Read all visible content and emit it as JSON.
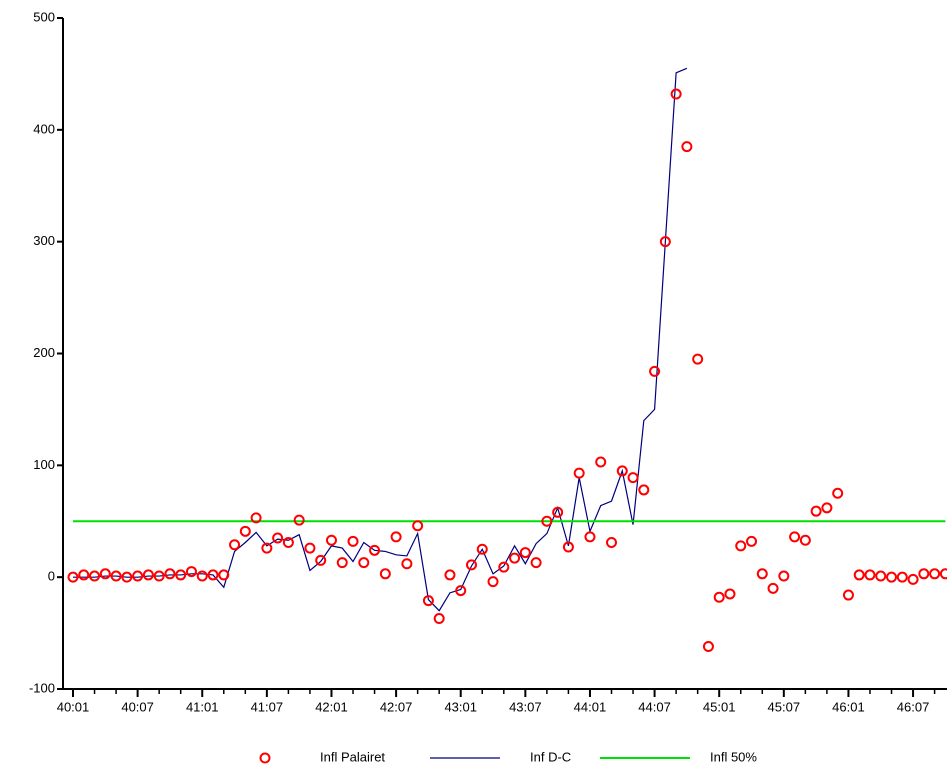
{
  "chart_data": {
    "type": "line",
    "categories": [
      "40:01",
      null,
      null,
      null,
      null,
      null,
      "40:07",
      null,
      null,
      null,
      null,
      null,
      "41:01",
      null,
      null,
      null,
      null,
      null,
      "41:07",
      null,
      null,
      null,
      null,
      null,
      "42:01",
      null,
      null,
      null,
      null,
      null,
      "42:07",
      null,
      null,
      null,
      null,
      null,
      "43:01",
      null,
      null,
      null,
      null,
      null,
      "43:07",
      null,
      null,
      null,
      null,
      null,
      "44:01",
      null,
      null,
      null,
      null,
      null,
      "44:07",
      null,
      null,
      null,
      null,
      null,
      "45:01",
      null,
      null,
      null,
      null,
      null,
      "45:07",
      null,
      null,
      null,
      null,
      null,
      "46:01",
      null,
      null,
      null,
      null,
      null,
      "46:07",
      null,
      null,
      null
    ],
    "series": [
      {
        "name": "Infl Palairet",
        "color": "#ff0000",
        "mode": "markers",
        "values": [
          0,
          2,
          1,
          3,
          1,
          0,
          1,
          2,
          1,
          3,
          2,
          5,
          1,
          2,
          2,
          29,
          41,
          53,
          26,
          35,
          31,
          51,
          26,
          15,
          33,
          13,
          32,
          13,
          24,
          3,
          36,
          12,
          46,
          -21,
          -37,
          2,
          -12,
          11,
          25,
          -4,
          9,
          17,
          22,
          13,
          50,
          58,
          27,
          93,
          36,
          103,
          31,
          95,
          89,
          78,
          184,
          300,
          432,
          385,
          195,
          -62,
          -18,
          -15,
          28,
          32,
          3,
          -10,
          1,
          36,
          33,
          59,
          62,
          75,
          -16,
          2,
          2,
          1,
          0,
          0,
          -2,
          3,
          3,
          3
        ]
      },
      {
        "name": "Inf D-C",
        "color": "#000080",
        "mode": "line",
        "values": [
          0,
          0,
          0,
          1,
          1,
          0,
          0,
          1,
          1,
          2,
          2,
          3,
          3,
          2,
          -9,
          23,
          31,
          40,
          28,
          34,
          33,
          38,
          6,
          14,
          28,
          26,
          14,
          31,
          24,
          23,
          20,
          19,
          39,
          -20,
          -30,
          -14,
          -11,
          10,
          25,
          3,
          10,
          28,
          12,
          30,
          39,
          62,
          28,
          89,
          41,
          64,
          68,
          95,
          47,
          140,
          150,
          300,
          451,
          455,
          null,
          null,
          null,
          null,
          null,
          null,
          null,
          null,
          null,
          null,
          null,
          null,
          null,
          null,
          null,
          null,
          null,
          null,
          null,
          null,
          null,
          null,
          null,
          null
        ]
      },
      {
        "name": "Infl 50%",
        "color": "#00e000",
        "mode": "line",
        "values": [
          50,
          50,
          50,
          50,
          50,
          50,
          50,
          50,
          50,
          50,
          50,
          50,
          50,
          50,
          50,
          50,
          50,
          50,
          50,
          50,
          50,
          50,
          50,
          50,
          50,
          50,
          50,
          50,
          50,
          50,
          50,
          50,
          50,
          50,
          50,
          50,
          50,
          50,
          50,
          50,
          50,
          50,
          50,
          50,
          50,
          50,
          50,
          50,
          50,
          50,
          50,
          50,
          50,
          50,
          50,
          50,
          50,
          50,
          50,
          50,
          50,
          50,
          50,
          50,
          50,
          50,
          50,
          50,
          50,
          50,
          50,
          50,
          50,
          50,
          50,
          50,
          50,
          50,
          50,
          50,
          50,
          50
        ]
      }
    ],
    "ylim": [
      -100,
      500
    ],
    "yticks": [
      -100,
      0,
      100,
      200,
      300,
      400,
      500
    ],
    "grid": false
  }
}
